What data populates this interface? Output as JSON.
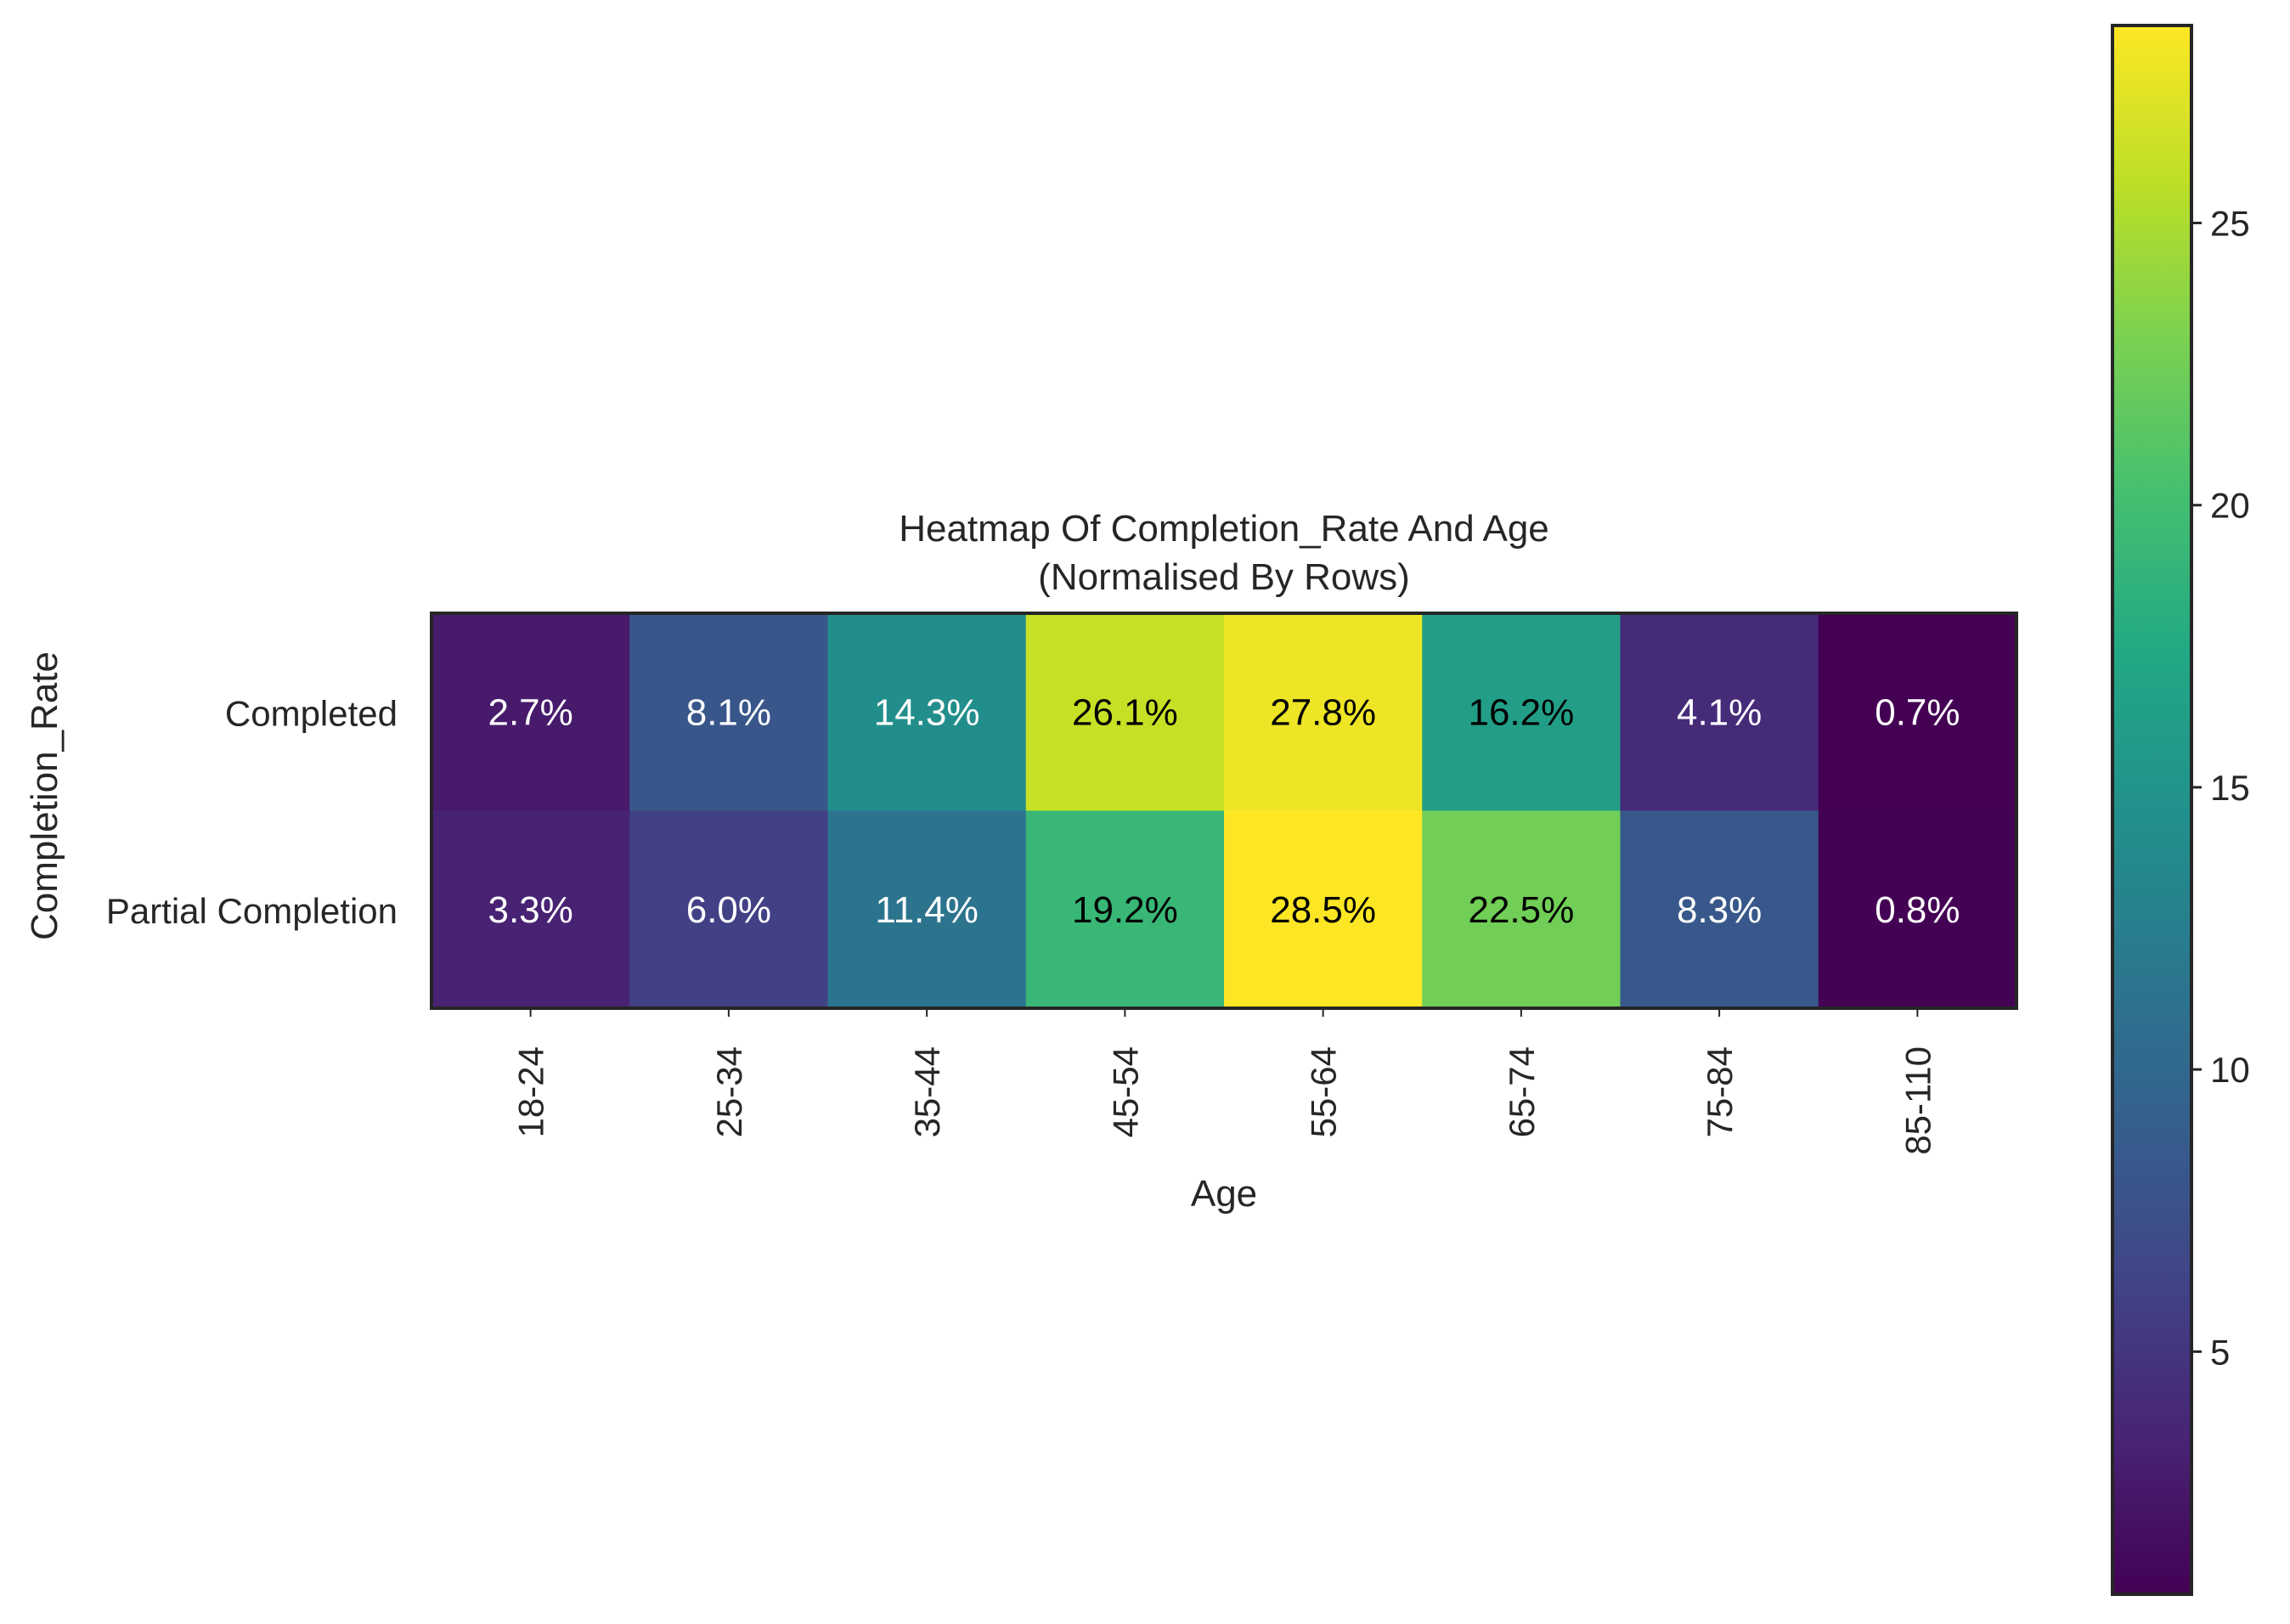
{
  "chart_data": {
    "type": "heatmap",
    "title": "Heatmap Of Completion_Rate And Age",
    "subtitle": "(Normalised By Rows)",
    "xlabel": "Age",
    "ylabel": "Completion_Rate",
    "x_categories": [
      "18-24",
      "25-34",
      "35-44",
      "45-54",
      "55-64",
      "65-74",
      "75-84",
      "85-110"
    ],
    "y_categories": [
      "Completed",
      "Partial Completion"
    ],
    "values": [
      [
        2.7,
        8.1,
        14.3,
        26.1,
        27.8,
        16.2,
        4.1,
        0.7
      ],
      [
        3.3,
        6.0,
        11.4,
        19.2,
        28.5,
        22.5,
        8.3,
        0.8
      ]
    ],
    "cell_labels": [
      [
        "2.7%",
        "8.1%",
        "14.3%",
        "26.1%",
        "27.8%",
        "16.2%",
        "4.1%",
        "0.7%"
      ],
      [
        "3.3%",
        "6.0%",
        "11.4%",
        "19.2%",
        "28.5%",
        "22.5%",
        "8.3%",
        "0.8%"
      ]
    ],
    "colormap": "viridis",
    "colorbar": {
      "range": [
        0.7,
        28.5
      ],
      "ticks": [
        5,
        10,
        15,
        20,
        25
      ],
      "tick_labels": [
        "5",
        "10",
        "15",
        "20",
        "25"
      ],
      "placement": "right"
    },
    "grid": false,
    "label_color_dark": "#000000",
    "label_color_light": "#ffffff"
  }
}
